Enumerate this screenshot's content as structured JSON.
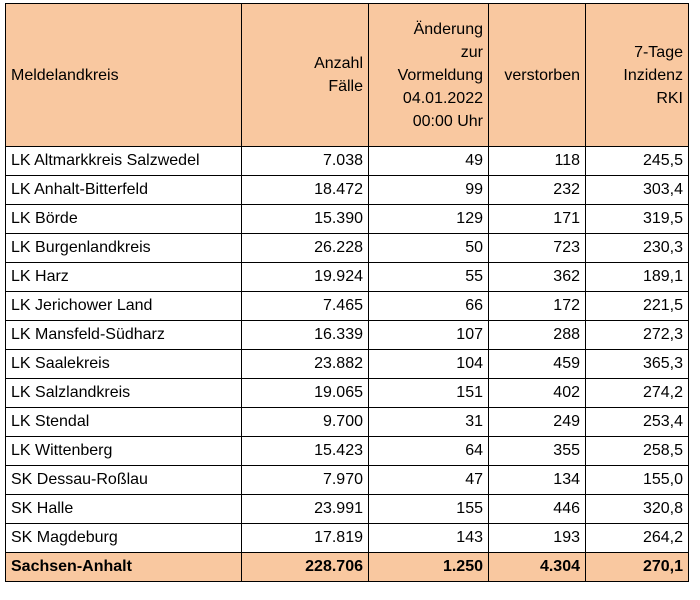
{
  "table": {
    "headers": [
      {
        "lines": [
          "Meldelandkreis"
        ]
      },
      {
        "lines": [
          "Anzahl",
          "Fälle"
        ]
      },
      {
        "lines": [
          "Änderung",
          "zur",
          "Vormeldung",
          "04.01.2022",
          "00:00 Uhr"
        ]
      },
      {
        "lines": [
          "verstorben"
        ]
      },
      {
        "lines": [
          "7-Tage",
          "Inzidenz",
          "RKI"
        ]
      }
    ],
    "rows": [
      {
        "name": "LK Altmarkkreis Salzwedel",
        "cases": "7.038",
        "change": "49",
        "deaths": "118",
        "incidence": "245,5"
      },
      {
        "name": "LK Anhalt-Bitterfeld",
        "cases": "18.472",
        "change": "99",
        "deaths": "232",
        "incidence": "303,4"
      },
      {
        "name": "LK Börde",
        "cases": "15.390",
        "change": "129",
        "deaths": "171",
        "incidence": "319,5"
      },
      {
        "name": "LK Burgenlandkreis",
        "cases": "26.228",
        "change": "50",
        "deaths": "723",
        "incidence": "230,3"
      },
      {
        "name": "LK Harz",
        "cases": "19.924",
        "change": "55",
        "deaths": "362",
        "incidence": "189,1"
      },
      {
        "name": "LK Jerichower Land",
        "cases": "7.465",
        "change": "66",
        "deaths": "172",
        "incidence": "221,5"
      },
      {
        "name": "LK Mansfeld-Südharz",
        "cases": "16.339",
        "change": "107",
        "deaths": "288",
        "incidence": "272,3"
      },
      {
        "name": "LK Saalekreis",
        "cases": "23.882",
        "change": "104",
        "deaths": "459",
        "incidence": "365,3"
      },
      {
        "name": "LK Salzlandkreis",
        "cases": "19.065",
        "change": "151",
        "deaths": "402",
        "incidence": "274,2"
      },
      {
        "name": "LK Stendal",
        "cases": "9.700",
        "change": "31",
        "deaths": "249",
        "incidence": "253,4"
      },
      {
        "name": "LK Wittenberg",
        "cases": "15.423",
        "change": "64",
        "deaths": "355",
        "incidence": "258,5"
      },
      {
        "name": "SK Dessau-Roßlau",
        "cases": "7.970",
        "change": "47",
        "deaths": "134",
        "incidence": "155,0"
      },
      {
        "name": "SK Halle",
        "cases": "23.991",
        "change": "155",
        "deaths": "446",
        "incidence": "320,8"
      },
      {
        "name": "SK Magdeburg",
        "cases": "17.819",
        "change": "143",
        "deaths": "193",
        "incidence": "264,2"
      }
    ],
    "total": {
      "name": "Sachsen-Anhalt",
      "cases": "228.706",
      "change": "1.250",
      "deaths": "4.304",
      "incidence": "270,1"
    }
  }
}
